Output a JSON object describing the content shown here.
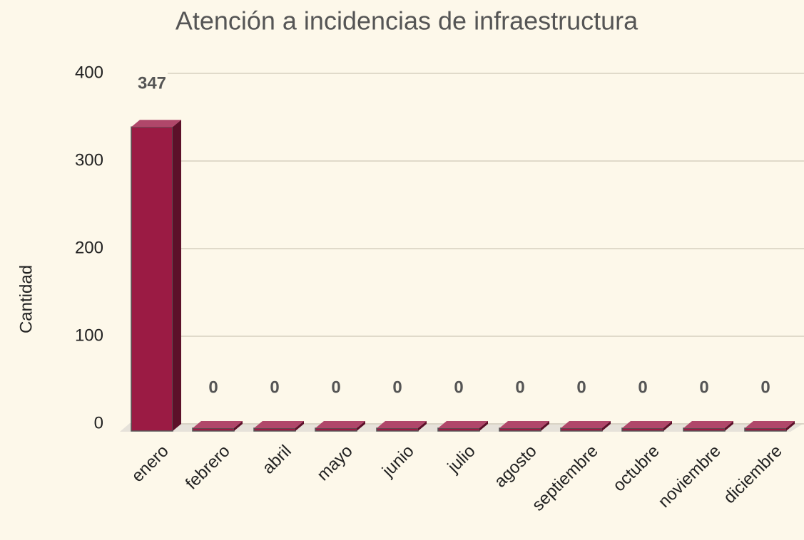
{
  "chart_data": {
    "type": "bar",
    "title": "Atención a incidencias de infraestructura",
    "y_label": "Cantidad",
    "categories": [
      "enero",
      "febrero",
      "abril",
      "mayo",
      "junio",
      "julio",
      "agosto",
      "septiembre",
      "octubre",
      "noviembre",
      "diciembre"
    ],
    "values": [
      347,
      0,
      0,
      0,
      0,
      0,
      0,
      0,
      0,
      0,
      0
    ],
    "color": "#9b1b44",
    "ylim": [
      0,
      400
    ],
    "yticks": [
      0,
      100,
      200,
      300,
      400
    ],
    "grid": true
  }
}
